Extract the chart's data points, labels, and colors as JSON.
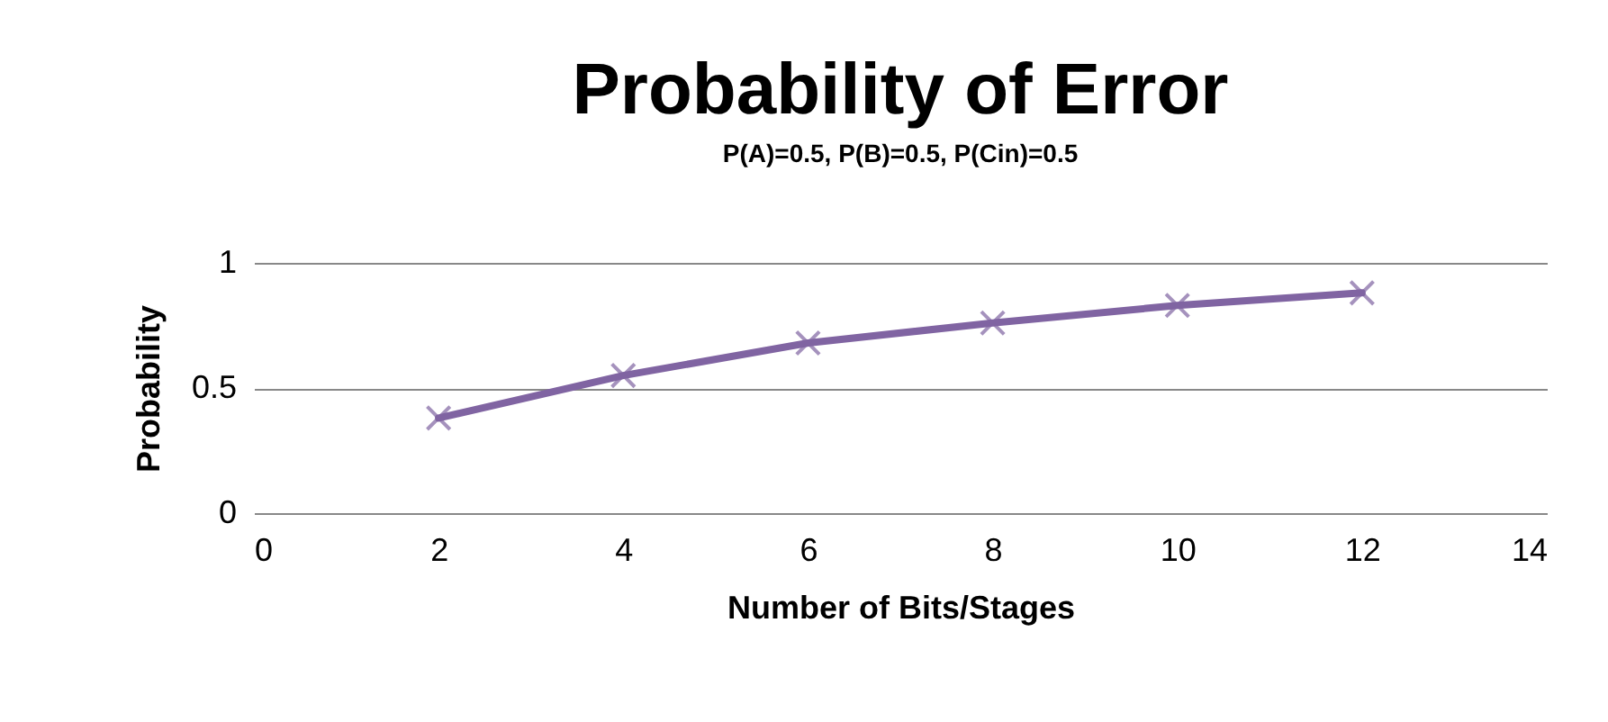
{
  "chart_data": {
    "type": "line",
    "title": "Probability of Error",
    "subtitle": "P(A)=0.5, P(B)=0.5, P(Cin)=0.5",
    "xlabel": "Number of Bits/Stages",
    "ylabel": "Probability",
    "x": [
      2,
      4,
      6,
      8,
      10,
      12
    ],
    "series": [
      {
        "color": "#8064a2",
        "values": [
          0.38,
          0.55,
          0.68,
          0.76,
          0.83,
          0.88
        ]
      }
    ],
    "xlim": [
      0,
      14
    ],
    "xticks": [
      0,
      2,
      4,
      6,
      8,
      10,
      12,
      14
    ],
    "ylim": [
      0,
      1
    ],
    "yticks": [
      0,
      0.5,
      1
    ],
    "grid": "y",
    "marker": "cross",
    "line_style": "solid"
  }
}
